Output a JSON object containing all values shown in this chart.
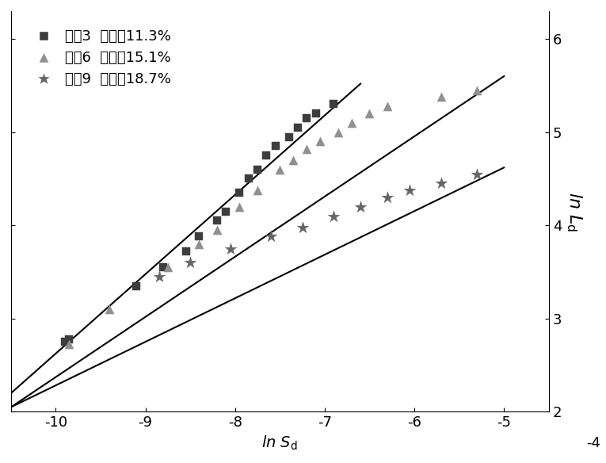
{
  "xlabel": "ln $S_{\\mathrm{d}}$",
  "ylabel": "ln $L_{\\mathrm{d}}$",
  "xlim": [
    -10.5,
    -4.5
  ],
  "ylim": [
    2.0,
    6.3
  ],
  "x_ticks": [
    -10,
    -9,
    -8,
    -7,
    -6,
    -5
  ],
  "x_ticks_extra": [
    -4
  ],
  "y_ticks": [
    2,
    3,
    4,
    5,
    6
  ],
  "series": [
    {
      "label": "工况3  含水率11.3%",
      "marker": "s",
      "color": "#3d3d3d",
      "ms": 7,
      "x": [
        -9.9,
        -9.85,
        -9.1,
        -8.8,
        -8.55,
        -8.4,
        -8.2,
        -8.1,
        -7.95,
        -7.85,
        -7.75,
        -7.65,
        -7.55,
        -7.4,
        -7.3,
        -7.2,
        -7.1,
        -6.9
      ],
      "y": [
        2.75,
        2.78,
        3.35,
        3.55,
        3.72,
        3.88,
        4.05,
        4.15,
        4.35,
        4.5,
        4.6,
        4.75,
        4.85,
        4.95,
        5.05,
        5.15,
        5.2,
        5.3
      ],
      "fit_x": [
        -10.5,
        -6.6
      ],
      "fit_y": [
        2.2,
        5.52
      ]
    },
    {
      "label": "工况6  含水率15.1%",
      "marker": "^",
      "color": "#909090",
      "ms": 8,
      "x": [
        -9.85,
        -9.4,
        -8.75,
        -8.4,
        -8.2,
        -7.95,
        -7.75,
        -7.5,
        -7.35,
        -7.2,
        -7.05,
        -6.85,
        -6.7,
        -6.5,
        -6.3,
        -5.7,
        -5.3
      ],
      "y": [
        2.73,
        3.1,
        3.55,
        3.8,
        3.95,
        4.2,
        4.38,
        4.6,
        4.7,
        4.82,
        4.9,
        5.0,
        5.1,
        5.2,
        5.28,
        5.38,
        5.45
      ],
      "fit_x": [
        -10.5,
        -5.0
      ],
      "fit_y": [
        2.05,
        5.6
      ]
    },
    {
      "label": "工况9  含水率18.7%",
      "marker": "*",
      "color": "#666666",
      "ms": 11,
      "x": [
        -8.85,
        -8.5,
        -8.05,
        -7.6,
        -7.25,
        -6.9,
        -6.6,
        -6.3,
        -6.05,
        -5.7,
        -5.3
      ],
      "y": [
        3.45,
        3.6,
        3.75,
        3.88,
        3.98,
        4.1,
        4.2,
        4.3,
        4.38,
        4.45,
        4.55
      ],
      "fit_x": [
        -10.5,
        -5.0
      ],
      "fit_y": [
        2.05,
        4.62
      ]
    }
  ],
  "background_color": "#ffffff",
  "font_size": 14,
  "tick_fontsize": 13
}
